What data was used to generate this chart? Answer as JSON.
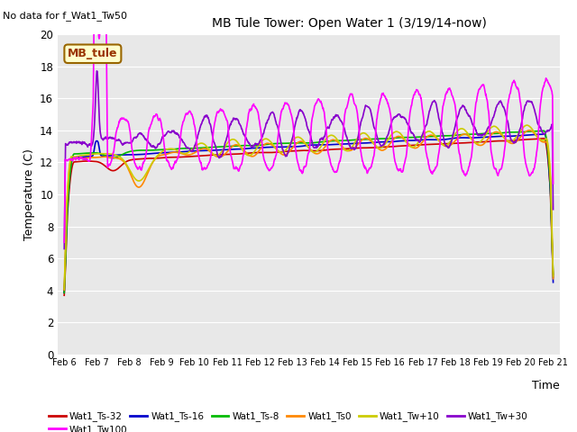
{
  "title": "MB Tule Tower: Open Water 1 (3/19/14-now)",
  "subtitle": "No data for f_Wat1_Tw50",
  "ylabel": "Temperature (C)",
  "xlabel": "Time",
  "ylim": [
    0,
    20
  ],
  "x_tick_labels": [
    "Feb 6",
    "Feb 7",
    "Feb 8",
    "Feb 9",
    "Feb 10",
    "Feb 11",
    "Feb 12",
    "Feb 13",
    "Feb 14",
    "Feb 15",
    "Feb 16",
    "Feb 17",
    "Feb 18",
    "Feb 19",
    "Feb 20",
    "Feb 21"
  ],
  "bg_color": "#e8e8e8",
  "series": {
    "Wat1_Ts-32": {
      "color": "#cc0000",
      "lw": 1.2
    },
    "Wat1_Ts-16": {
      "color": "#0000cc",
      "lw": 1.2
    },
    "Wat1_Ts-8": {
      "color": "#00bb00",
      "lw": 1.2
    },
    "Wat1_Ts0": {
      "color": "#ff8800",
      "lw": 1.2
    },
    "Wat1_Tw+10": {
      "color": "#cccc00",
      "lw": 1.2
    },
    "Wat1_Tw+30": {
      "color": "#8800cc",
      "lw": 1.2
    },
    "Wat1_Tw100": {
      "color": "#ff00ff",
      "lw": 1.2
    }
  },
  "MB_tule_box": {
    "text": "MB_tule",
    "facecolor": "#ffffcc",
    "edgecolor": "#996600",
    "textcolor": "#993300"
  }
}
